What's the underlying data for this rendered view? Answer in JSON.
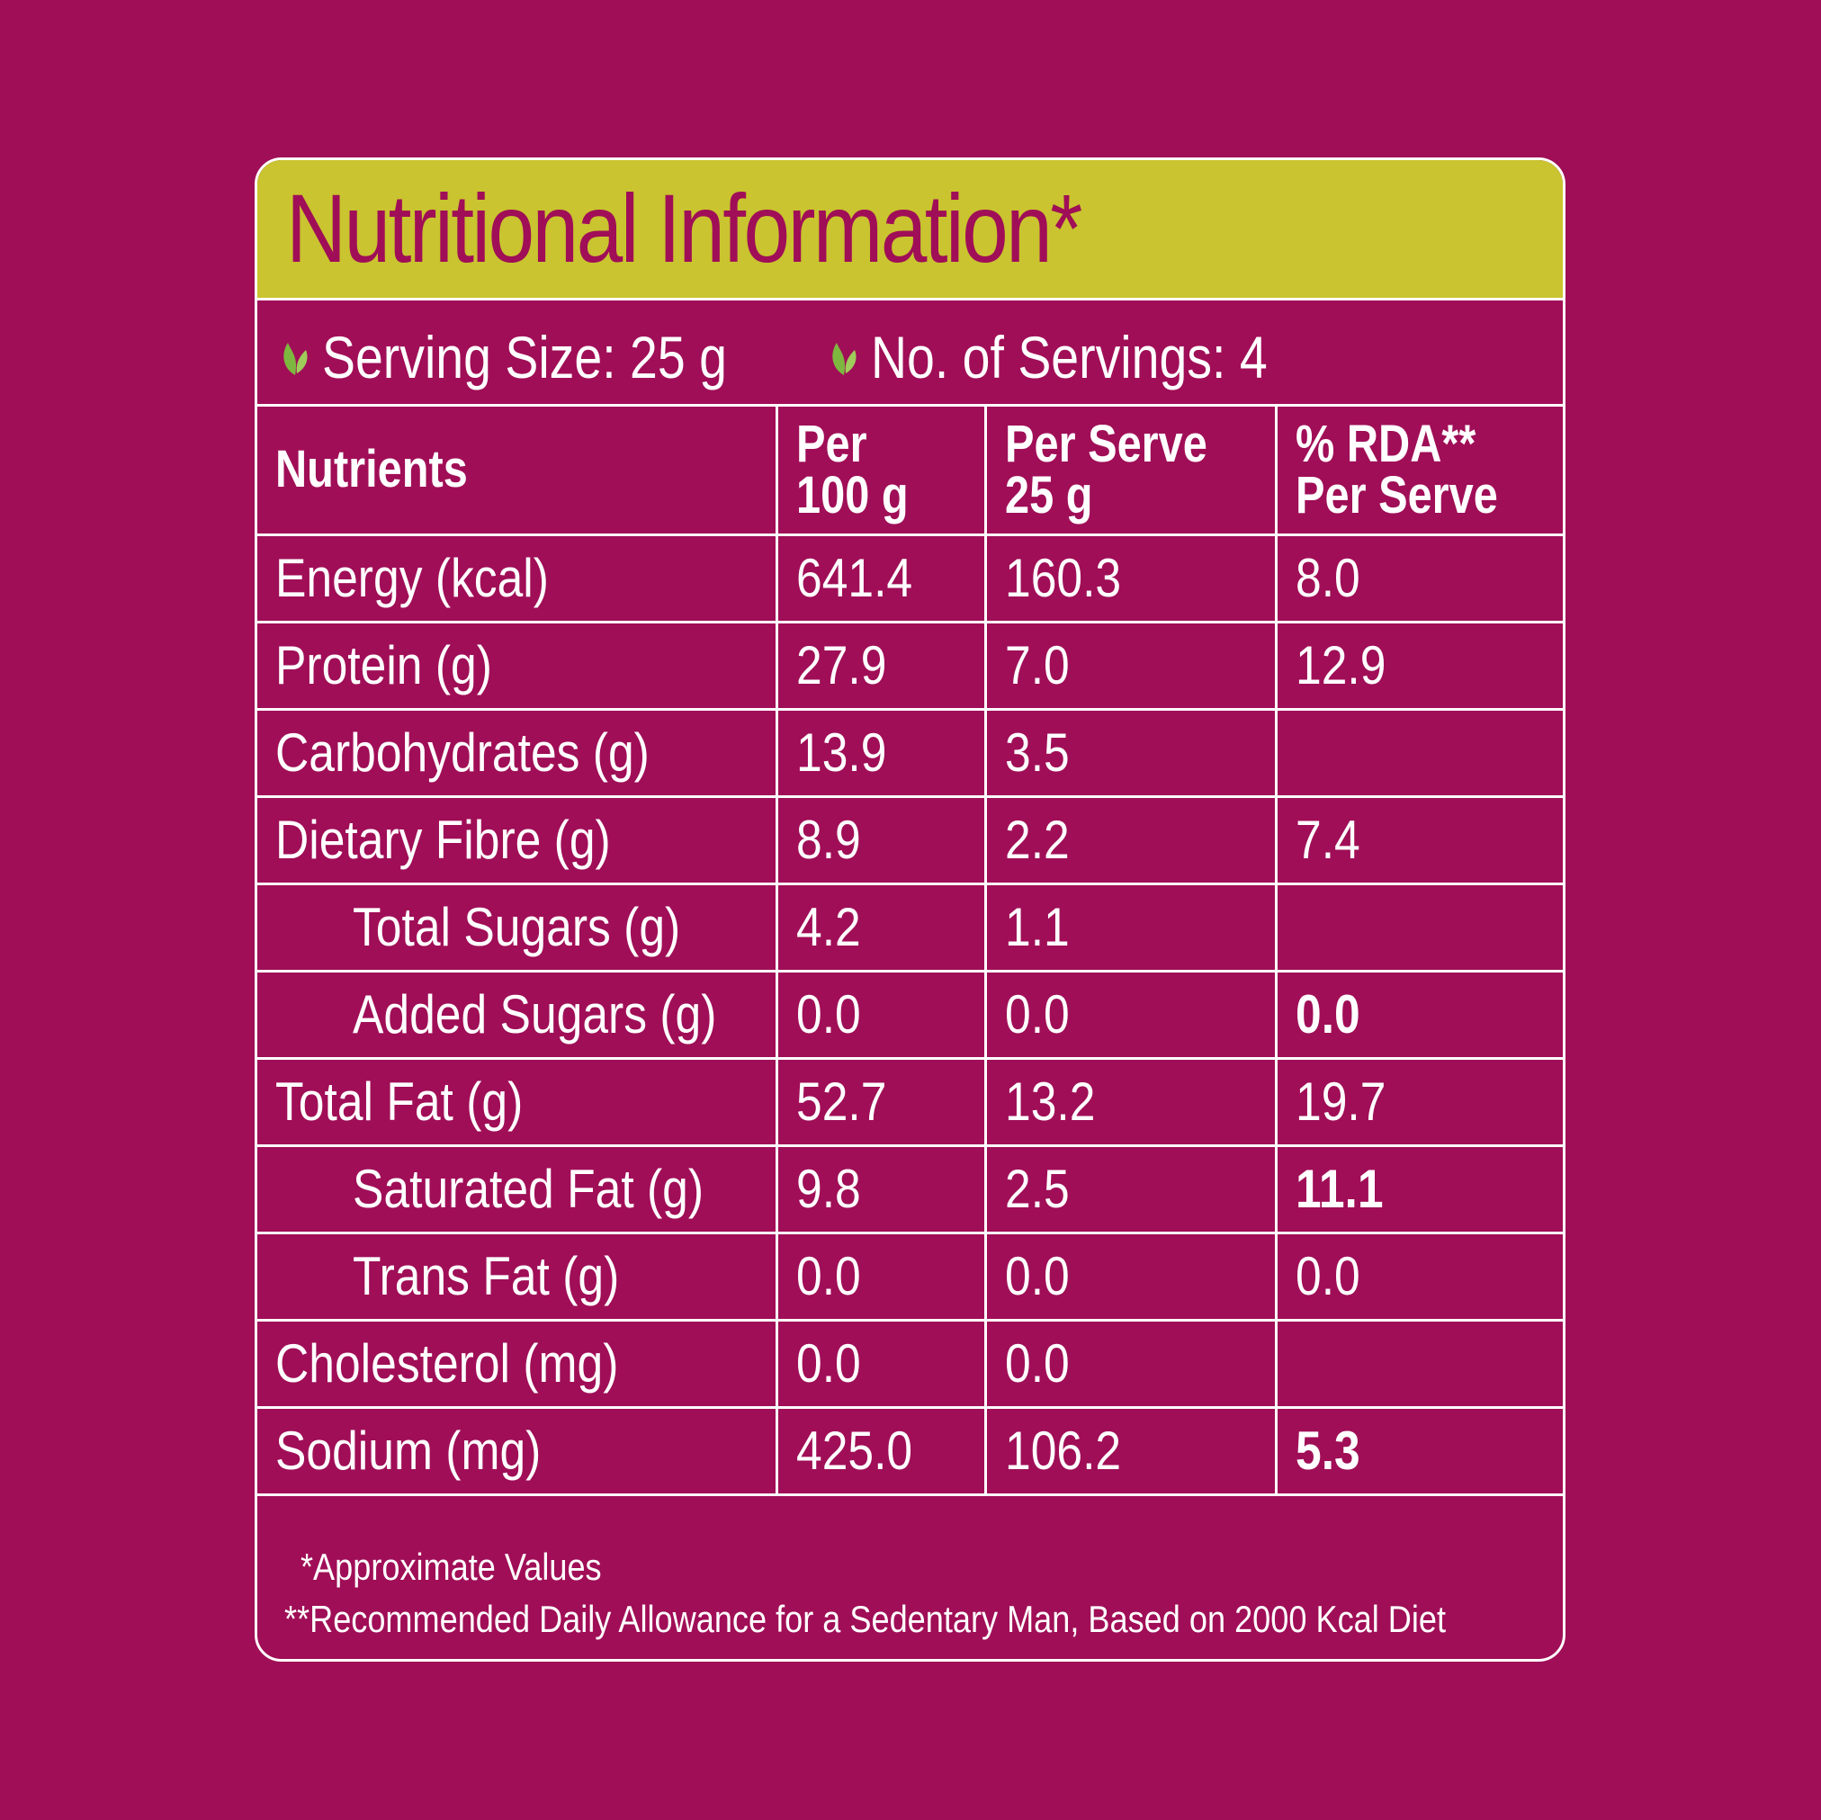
{
  "title": "Nutritional Information*",
  "serving": {
    "size_label": "Serving Size: 25 g",
    "count_label": "No. of Servings: 4",
    "icon": "leaf-icon"
  },
  "table": {
    "headers": [
      "Nutrients",
      "Per\n100 g",
      "Per Serve\n25 g",
      "% RDA**\nPer Serve"
    ],
    "rows": [
      {
        "name": "Energy (kcal)",
        "per100": "641.4",
        "perServe": "160.3",
        "rda": "8.0"
      },
      {
        "name": "Protein (g)",
        "per100": "27.9",
        "perServe": "7.0",
        "rda": "12.9"
      },
      {
        "name": "Carbohydrates (g)",
        "per100": "13.9",
        "perServe": "3.5",
        "rda": ""
      },
      {
        "name": "Dietary Fibre (g)",
        "per100": "8.9",
        "perServe": "2.2",
        "rda": "7.4"
      },
      {
        "name": "Total Sugars (g)",
        "per100": "4.2",
        "perServe": "1.1",
        "rda": ""
      },
      {
        "name": "Added Sugars (g)",
        "per100": "0.0",
        "perServe": "0.0",
        "rda": "0.0"
      },
      {
        "name": "Total Fat (g)",
        "per100": "52.7",
        "perServe": "13.2",
        "rda": "19.7"
      },
      {
        "name": "Saturated Fat (g)",
        "per100": "9.8",
        "perServe": "2.5",
        "rda": "11.1"
      },
      {
        "name": "Trans Fat (g)",
        "per100": "0.0",
        "perServe": "0.0",
        "rda": "0.0"
      },
      {
        "name": "Cholesterol (mg)",
        "per100": "0.0",
        "perServe": "0.0",
        "rda": ""
      },
      {
        "name": "Sodium (mg)",
        "per100": "425.0",
        "perServe": "106.2",
        "rda": "5.3"
      }
    ]
  },
  "footnotes": {
    "approx": "*Approximate Values",
    "rda": "**Recommended Daily Allowance for a Sedentary Man, Based on 2000 Kcal Diet"
  },
  "colors": {
    "background": "#a00e57",
    "title_band": "#c9c42f",
    "title_text": "#a00e57",
    "leaf": "#7db73f",
    "text": "#ffffff"
  }
}
